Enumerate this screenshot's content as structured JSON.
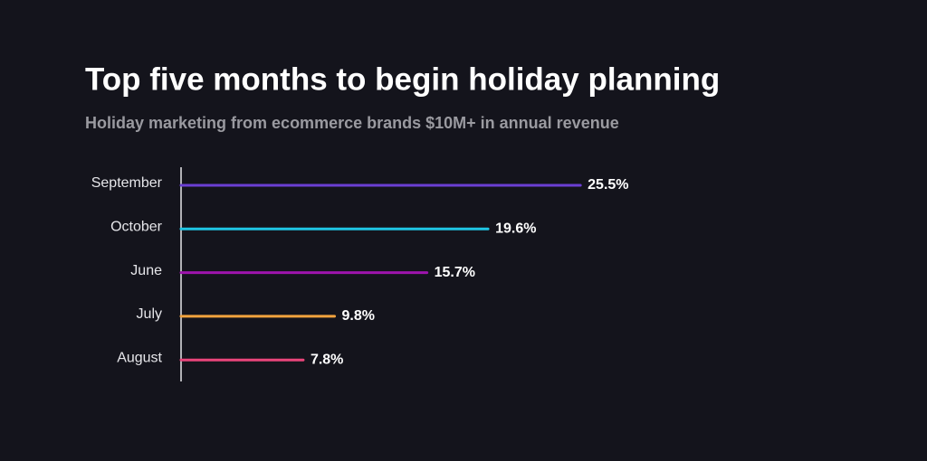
{
  "chart_data": {
    "type": "bar",
    "orientation": "horizontal",
    "title": "Top five months to begin holiday planning",
    "subtitle": "Holiday marketing from ecommerce brands $10M+ in annual revenue",
    "categories": [
      "September",
      "October",
      "June",
      "July",
      "August"
    ],
    "values": [
      25.5,
      19.6,
      15.7,
      9.8,
      7.8
    ],
    "value_labels": [
      "25.5%",
      "19.6%",
      "15.7%",
      "9.8%",
      "7.8%"
    ],
    "colors": [
      "#6b3fd4",
      "#1fc6e4",
      "#9e14ad",
      "#f2a33e",
      "#e9457b"
    ]
  }
}
